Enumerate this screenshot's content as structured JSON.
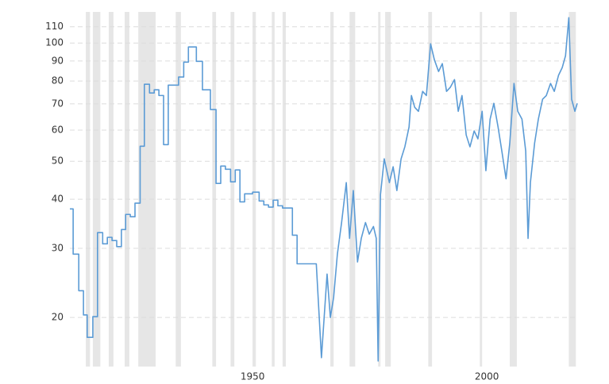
{
  "chart_data": {
    "type": "line",
    "log_y": true,
    "grid": true,
    "color": "#5b9bd5",
    "band_color": "#e6e6e6",
    "xlim": [
      1911,
      2019.3
    ],
    "xticks": [
      1950,
      2000
    ],
    "ylim": [
      15,
      120
    ],
    "yticks": [
      20,
      30,
      40,
      50,
      60,
      70,
      80,
      90,
      100,
      110
    ],
    "recessions": [
      [
        1914.4,
        1915.3
      ],
      [
        1915.9,
        1917.5
      ],
      [
        1919.3,
        1920.3
      ],
      [
        1922.7,
        1923.7
      ],
      [
        1925.6,
        1929.3
      ],
      [
        1933.6,
        1934.7
      ],
      [
        1941.4,
        1942.2
      ],
      [
        1945.3,
        1946.1
      ],
      [
        1950.0,
        1950.7
      ],
      [
        1954.1,
        1954.7
      ],
      [
        1956.4,
        1957.1
      ],
      [
        1966.6,
        1967.3
      ],
      [
        1970.7,
        1971.9
      ],
      [
        1976.8,
        1977.3
      ],
      [
        1978.3,
        1979.5
      ],
      [
        1987.5,
        1988.3
      ],
      [
        1998.5,
        1999.0
      ],
      [
        2004.9,
        2006.4
      ],
      [
        2017.5,
        2019.0
      ]
    ],
    "x": [
      1911.0,
      1911.7,
      1911.7,
      1912.9,
      1912.9,
      1913.9,
      1913.9,
      1914.7,
      1914.7,
      1915.9,
      1915.9,
      1916.9,
      1916.9,
      1918.0,
      1918.0,
      1919.0,
      1919.0,
      1920.0,
      1920.0,
      1921.0,
      1921.0,
      1922.0,
      1922.0,
      1922.9,
      1922.9,
      1923.9,
      1923.9,
      1924.9,
      1924.9,
      1926.0,
      1926.0,
      1926.9,
      1926.9,
      1928.0,
      1928.0,
      1929.0,
      1929.0,
      1930.0,
      1930.0,
      1931.0,
      1931.0,
      1932.0,
      1932.0,
      1934.2,
      1934.2,
      1935.3,
      1935.3,
      1936.3,
      1936.3,
      1938.0,
      1938.0,
      1939.3,
      1939.3,
      1941.0,
      1941.0,
      1942.2,
      1942.2,
      1943.2,
      1943.2,
      1944.2,
      1944.2,
      1945.3,
      1945.3,
      1946.3,
      1946.3,
      1947.3,
      1947.3,
      1948.3,
      1948.3,
      1950.0,
      1950.0,
      1951.4,
      1951.4,
      1952.4,
      1952.4,
      1953.4,
      1953.4,
      1954.4,
      1954.4,
      1955.4,
      1955.4,
      1956.4,
      1956.4,
      1958.5,
      1958.5,
      1959.5,
      1959.5,
      1963.6,
      1964.7,
      1965.9,
      1966.6,
      1967.3,
      1968.1,
      1969.0,
      1970.0,
      1970.7,
      1971.5,
      1972.4,
      1973.2,
      1974.1,
      1974.9,
      1975.8,
      1976.4,
      1976.8,
      1977.3,
      1978.1,
      1979.2,
      1980.0,
      1980.8,
      1981.7,
      1982.5,
      1983.4,
      1983.9,
      1984.6,
      1985.4,
      1986.3,
      1987.1,
      1988.0,
      1988.8,
      1989.7,
      1990.5,
      1991.4,
      1992.2,
      1993.1,
      1993.9,
      1994.7,
      1995.6,
      1996.4,
      1997.3,
      1998.1,
      1999.0,
      1999.8,
      2000.7,
      2001.5,
      2002.4,
      2003.2,
      2004.1,
      2004.9,
      2005.8,
      2006.6,
      2007.5,
      2008.3,
      2008.8,
      2009.3,
      2010.2,
      2011.0,
      2011.9,
      2012.7,
      2013.6,
      2014.4,
      2015.3,
      2016.1,
      2016.8,
      2017.5,
      2018.1,
      2018.8,
      2019.3
    ],
    "values": [
      37.8,
      37.8,
      29.0,
      29.0,
      23.4,
      23.4,
      20.3,
      20.3,
      17.8,
      17.8,
      20.1,
      20.1,
      32.9,
      32.9,
      30.8,
      30.8,
      32.0,
      32.0,
      31.4,
      31.4,
      30.3,
      30.3,
      33.5,
      33.5,
      36.6,
      36.6,
      36.1,
      36.1,
      39.1,
      39.1,
      54.6,
      54.6,
      78.5,
      78.5,
      74.6,
      74.6,
      76.0,
      76.0,
      73.5,
      73.5,
      55.1,
      55.1,
      78.1,
      78.1,
      81.9,
      81.9,
      89.4,
      89.4,
      97.7,
      97.7,
      89.8,
      89.8,
      76.0,
      76.0,
      67.7,
      67.7,
      43.9,
      43.9,
      48.6,
      48.6,
      47.7,
      47.7,
      44.3,
      44.3,
      47.5,
      47.5,
      39.4,
      39.4,
      41.3,
      41.3,
      41.7,
      41.7,
      39.6,
      39.6,
      38.7,
      38.7,
      38.2,
      38.2,
      39.8,
      39.8,
      38.5,
      38.5,
      38.0,
      38.0,
      32.4,
      32.4,
      27.4,
      27.4,
      15.8,
      25.8,
      20,
      22.5,
      29.0,
      34.9,
      44.1,
      31.8,
      42.1,
      27.7,
      31.8,
      34.9,
      32.6,
      34.1,
      31.8,
      15.5,
      41.1,
      50.7,
      44.1,
      48.4,
      42.1,
      50.7,
      54.4,
      61.1,
      73.5,
      68.6,
      67.0,
      75.3,
      73.5,
      99.5,
      90.7,
      84.6,
      88.6,
      75.3,
      77.1,
      80.7,
      67.0,
      73.5,
      58.3,
      54.4,
      59.7,
      57.0,
      67.0,
      47.3,
      64.0,
      70.2,
      61.1,
      53.1,
      45.1,
      55.6,
      78.9,
      67.0,
      64.0,
      53.1,
      31.8,
      44.1,
      55.6,
      64.0,
      71.9,
      73.5,
      78.9,
      75.3,
      82.7,
      86.6,
      92.8,
      116,
      71.9,
      67.0,
      70.2
    ]
  }
}
